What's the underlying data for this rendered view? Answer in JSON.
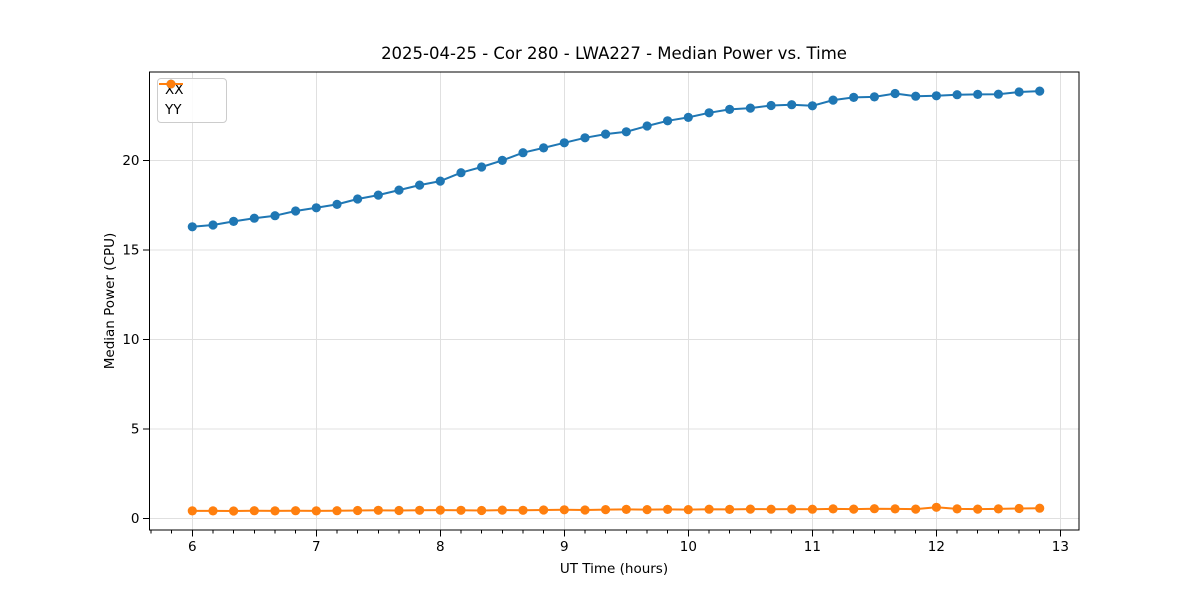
{
  "page": {
    "background": "#ffffff"
  },
  "chart_data": {
    "type": "line",
    "title": "2025-04-25 - Cor 280 - LWA227 - Median Power vs. Time",
    "xlabel": "UT Time (hours)",
    "ylabel": "Median Power (CPU)",
    "xlim": [
      5.655,
      13.15
    ],
    "ylim": [
      -0.65,
      24.95
    ],
    "xticks": [
      6,
      7,
      8,
      9,
      10,
      11,
      12,
      13
    ],
    "yticks": [
      0,
      5,
      10,
      15,
      20
    ],
    "x_minor_step_hours": 0.1667,
    "grid": true,
    "legend_position": "upper left",
    "x": [
      6.0,
      6.167,
      6.333,
      6.5,
      6.667,
      6.833,
      7.0,
      7.167,
      7.333,
      7.5,
      7.667,
      7.833,
      8.0,
      8.167,
      8.333,
      8.5,
      8.667,
      8.833,
      9.0,
      9.167,
      9.333,
      9.5,
      9.667,
      9.833,
      10.0,
      10.167,
      10.333,
      10.5,
      10.667,
      10.833,
      11.0,
      11.167,
      11.333,
      11.5,
      11.667,
      11.833,
      12.0,
      12.167,
      12.333,
      12.5,
      12.667,
      12.833
    ],
    "series": [
      {
        "name": "XX",
        "color": "#1f77b4",
        "values": [
          16.3,
          16.4,
          16.6,
          16.78,
          16.92,
          17.18,
          17.36,
          17.55,
          17.85,
          18.07,
          18.35,
          18.63,
          18.85,
          19.32,
          19.64,
          20.01,
          20.44,
          20.71,
          20.99,
          21.27,
          21.48,
          21.61,
          21.93,
          22.22,
          22.41,
          22.67,
          22.86,
          22.93,
          23.08,
          23.12,
          23.06,
          23.38,
          23.53,
          23.56,
          23.75,
          23.6,
          23.62,
          23.68,
          23.7,
          23.71,
          23.83,
          23.88
        ]
      },
      {
        "name": "YY",
        "color": "#ff7f0e",
        "values": [
          0.42,
          0.42,
          0.41,
          0.43,
          0.42,
          0.43,
          0.42,
          0.43,
          0.44,
          0.45,
          0.44,
          0.45,
          0.46,
          0.45,
          0.44,
          0.46,
          0.45,
          0.47,
          0.48,
          0.47,
          0.49,
          0.5,
          0.49,
          0.5,
          0.49,
          0.51,
          0.5,
          0.52,
          0.51,
          0.52,
          0.51,
          0.53,
          0.52,
          0.54,
          0.53,
          0.52,
          0.62,
          0.53,
          0.52,
          0.53,
          0.55,
          0.57
        ]
      }
    ]
  },
  "colors": {
    "grid": "#e0e0e0",
    "spine": "#000000",
    "tick_text": "#000000",
    "legend_border": "#cccccc"
  }
}
